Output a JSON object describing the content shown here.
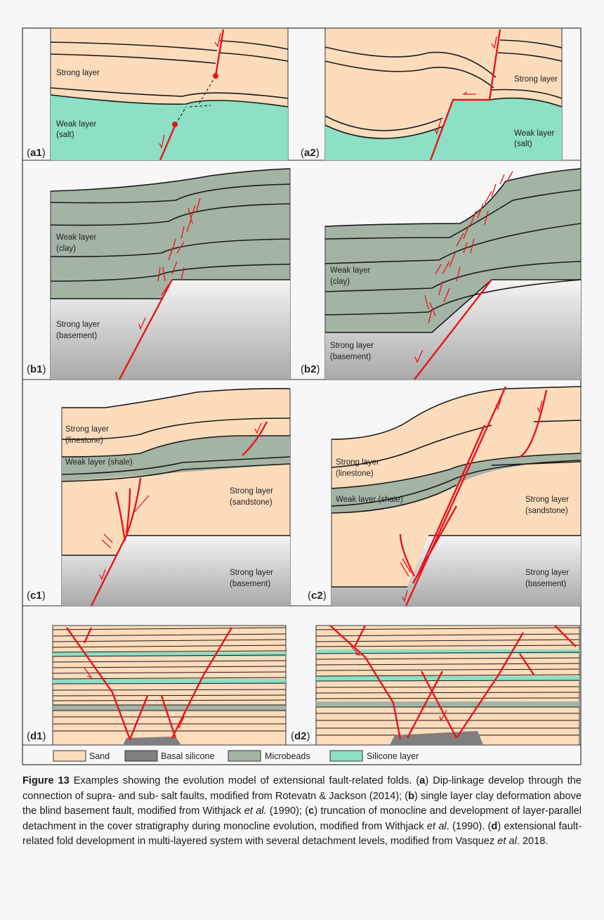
{
  "figure": {
    "panels": {
      "a1": {
        "tag": "a1",
        "labels": [
          "Strong layer",
          "Weak layer",
          "(salt)"
        ]
      },
      "a2": {
        "tag": "a2",
        "labels": [
          "Strong layer",
          "Weak layer",
          "(salt)"
        ]
      },
      "b1": {
        "tag": "b1",
        "labels": [
          "Weak layer",
          "(clay)",
          "Strong layer",
          "(basement)"
        ]
      },
      "b2": {
        "tag": "b2",
        "labels": [
          "Weak layer",
          "(clay)",
          "Strong layer",
          "(basement)"
        ]
      },
      "c1": {
        "tag": "c1",
        "labels": [
          "Strong layer",
          "(linestone)",
          "Weak layer (shale)",
          "Strong layer",
          "(sandstone)",
          "Strong layer",
          "(basement)"
        ]
      },
      "c2": {
        "tag": "c2",
        "labels": [
          "Strong layer",
          "(linestone)",
          "Weak layer (shale)",
          "Strong layer",
          "(sandstone)",
          "Strong layer",
          "(basement)"
        ]
      },
      "d1": {
        "tag": "d1"
      },
      "d2": {
        "tag": "d2"
      }
    },
    "legend": [
      {
        "label": "Sand",
        "color": "#fddcbc"
      },
      {
        "label": "Basal silicone",
        "color": "#7f7f7f"
      },
      {
        "label": "Microbeads",
        "color": "#a3b4a4"
      },
      {
        "label": "Silicone layer",
        "color": "#8ddfc6"
      }
    ],
    "colors": {
      "sand": "#fddcbc",
      "salt": "#8ddfc6",
      "clay": "#a3b4a4",
      "fault": "#e8141b"
    }
  },
  "caption": {
    "label": "Figure 13",
    "p1": " Examples showing the evolution model of extensional fault-related folds. (",
    "a": "a",
    "p2": ") Dip-linkage develop through the connection of supra- and sub- salt faults, modified from Rotevatn & Jackson (2014); (",
    "b": "b",
    "p3": ") single layer clay deformation above the blind basement fault, modified from Withjack ",
    "etal1": "et al.",
    "p4": " (1990); (",
    "c": "c",
    "p5": ") truncation of monocline and development of layer-parallel detachment in the cover stratigraphy during monocline evolution, modified from Withjack ",
    "etal2": "et al",
    "p6": ". (1990). (",
    "d": "d",
    "p7": ") extensional fault-related fold development in multi-layered system with several detachment levels, modified from Vasquez ",
    "etal3": "et al",
    "p8": ". 2018."
  }
}
